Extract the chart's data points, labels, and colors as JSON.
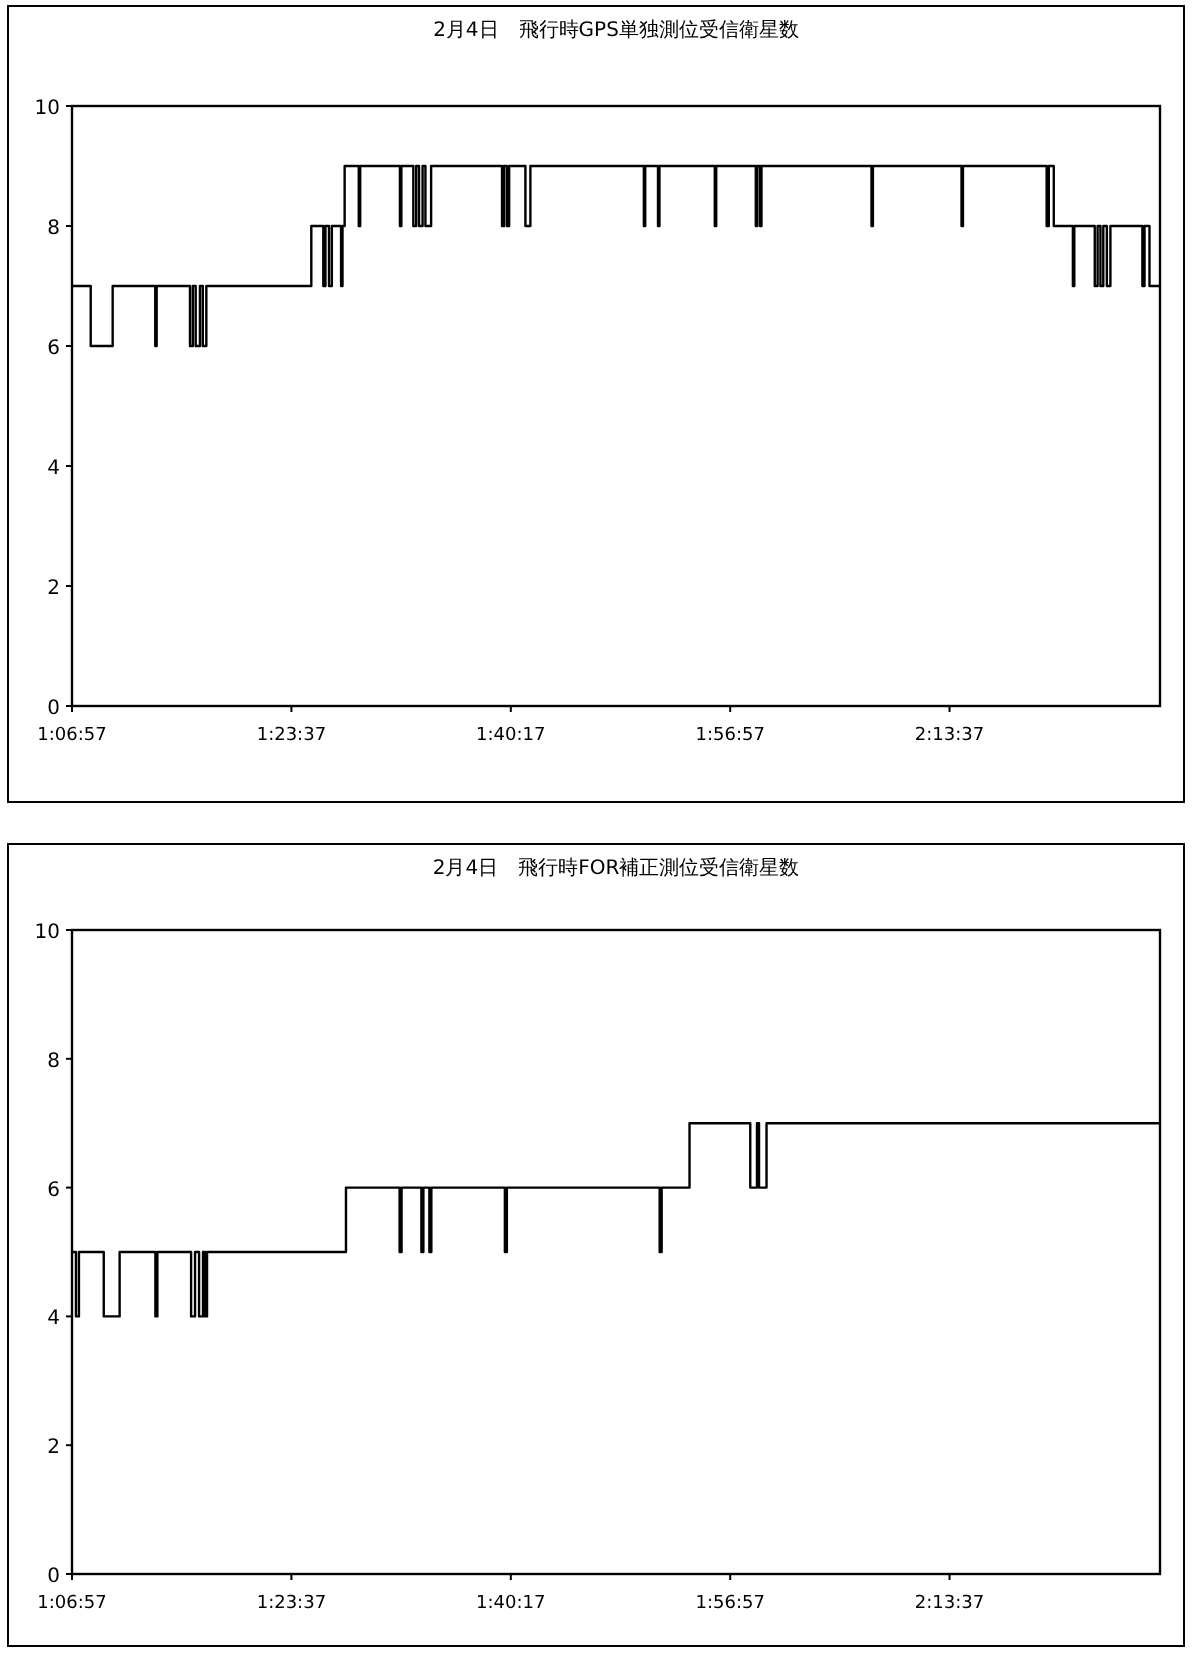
{
  "chart_data": [
    {
      "type": "step",
      "title": "2月4日　飛行時GPS単独測位受信衛星数",
      "x": [
        1.1158,
        1.1395,
        1.1673,
        1.2212,
        1.223,
        1.2652,
        1.2688,
        1.2724,
        1.2778,
        1.2814,
        1.2859,
        1.4188,
        1.434,
        1.4367,
        1.4412,
        1.4448,
        1.4565,
        1.4583,
        1.461,
        1.4789,
        1.4807,
        1.531,
        1.5328,
        1.548,
        1.5516,
        1.5552,
        1.5597,
        1.5633,
        1.5705,
        1.6603,
        1.663,
        1.6666,
        1.6693,
        1.6899,
        1.6962,
        1.8399,
        1.8416,
        1.8578,
        1.8596,
        1.9297,
        1.9315,
        1.9816,
        1.9835,
        1.987,
        1.9888,
        2.1281,
        2.1299,
        2.2421,
        2.2439,
        2.3499,
        2.3526,
        2.3589,
        2.3831,
        2.3849,
        2.4108,
        2.4144,
        2.418,
        2.4216,
        2.4261,
        2.4306,
        2.4711,
        2.4738,
        2.4801,
        2.4934
      ],
      "values": [
        7,
        6,
        7,
        6,
        7,
        6,
        7,
        6,
        7,
        6,
        7,
        8,
        7,
        8,
        7,
        8,
        7,
        8,
        9,
        8,
        9,
        8,
        9,
        8,
        9,
        8,
        9,
        8,
        9,
        8,
        9,
        8,
        9,
        8,
        9,
        8,
        9,
        8,
        9,
        8,
        9,
        8,
        9,
        8,
        9,
        8,
        9,
        8,
        9,
        8,
        9,
        8,
        7,
        8,
        7,
        8,
        7,
        8,
        7,
        8,
        7,
        8,
        7,
        7
      ],
      "color": "#000000",
      "xlim": [
        1.1158,
        2.4934
      ],
      "ylim": [
        0,
        10
      ],
      "xticks": [
        {
          "value": 1.1158,
          "label": "1:06:57"
        },
        {
          "value": 1.3936,
          "label": "1:23:37"
        },
        {
          "value": 1.6714,
          "label": "1:40:17"
        },
        {
          "value": 1.9492,
          "label": "1:56:57"
        },
        {
          "value": 2.2269,
          "label": "2:13:37"
        }
      ],
      "yticks": [
        0,
        2,
        4,
        6,
        8,
        10
      ],
      "grid": false
    },
    {
      "type": "step",
      "title": "2月4日　飛行時FOR補正測位受信衛星数",
      "x": [
        1.1158,
        1.1208,
        1.1246,
        1.156,
        1.1761,
        1.2214,
        1.2239,
        1.2666,
        1.2716,
        1.2767,
        1.2817,
        1.2842,
        1.2868,
        1.4627,
        1.5306,
        1.5331,
        1.5582,
        1.5607,
        1.5683,
        1.5708,
        1.6639,
        1.6664,
        1.8599,
        1.8624,
        1.8977,
        1.9746,
        1.9831,
        1.9857,
        1.9952,
        2.4934
      ],
      "values": [
        5,
        4,
        5,
        4,
        5,
        4,
        5,
        4,
        5,
        4,
        5,
        4,
        5,
        6,
        5,
        6,
        5,
        6,
        5,
        6,
        5,
        6,
        5,
        6,
        7,
        6,
        7,
        6,
        7,
        7
      ],
      "color": "#000000",
      "xlim": [
        1.1158,
        2.4934
      ],
      "ylim": [
        0,
        10
      ],
      "xticks": [
        {
          "value": 1.1158,
          "label": "1:06:57"
        },
        {
          "value": 1.3936,
          "label": "1:23:37"
        },
        {
          "value": 1.6714,
          "label": "1:40:17"
        },
        {
          "value": 1.9492,
          "label": "1:56:57"
        },
        {
          "value": 2.2269,
          "label": "2:13:37"
        }
      ],
      "yticks": [
        0,
        2,
        4,
        6,
        8,
        10
      ],
      "grid": false
    }
  ]
}
